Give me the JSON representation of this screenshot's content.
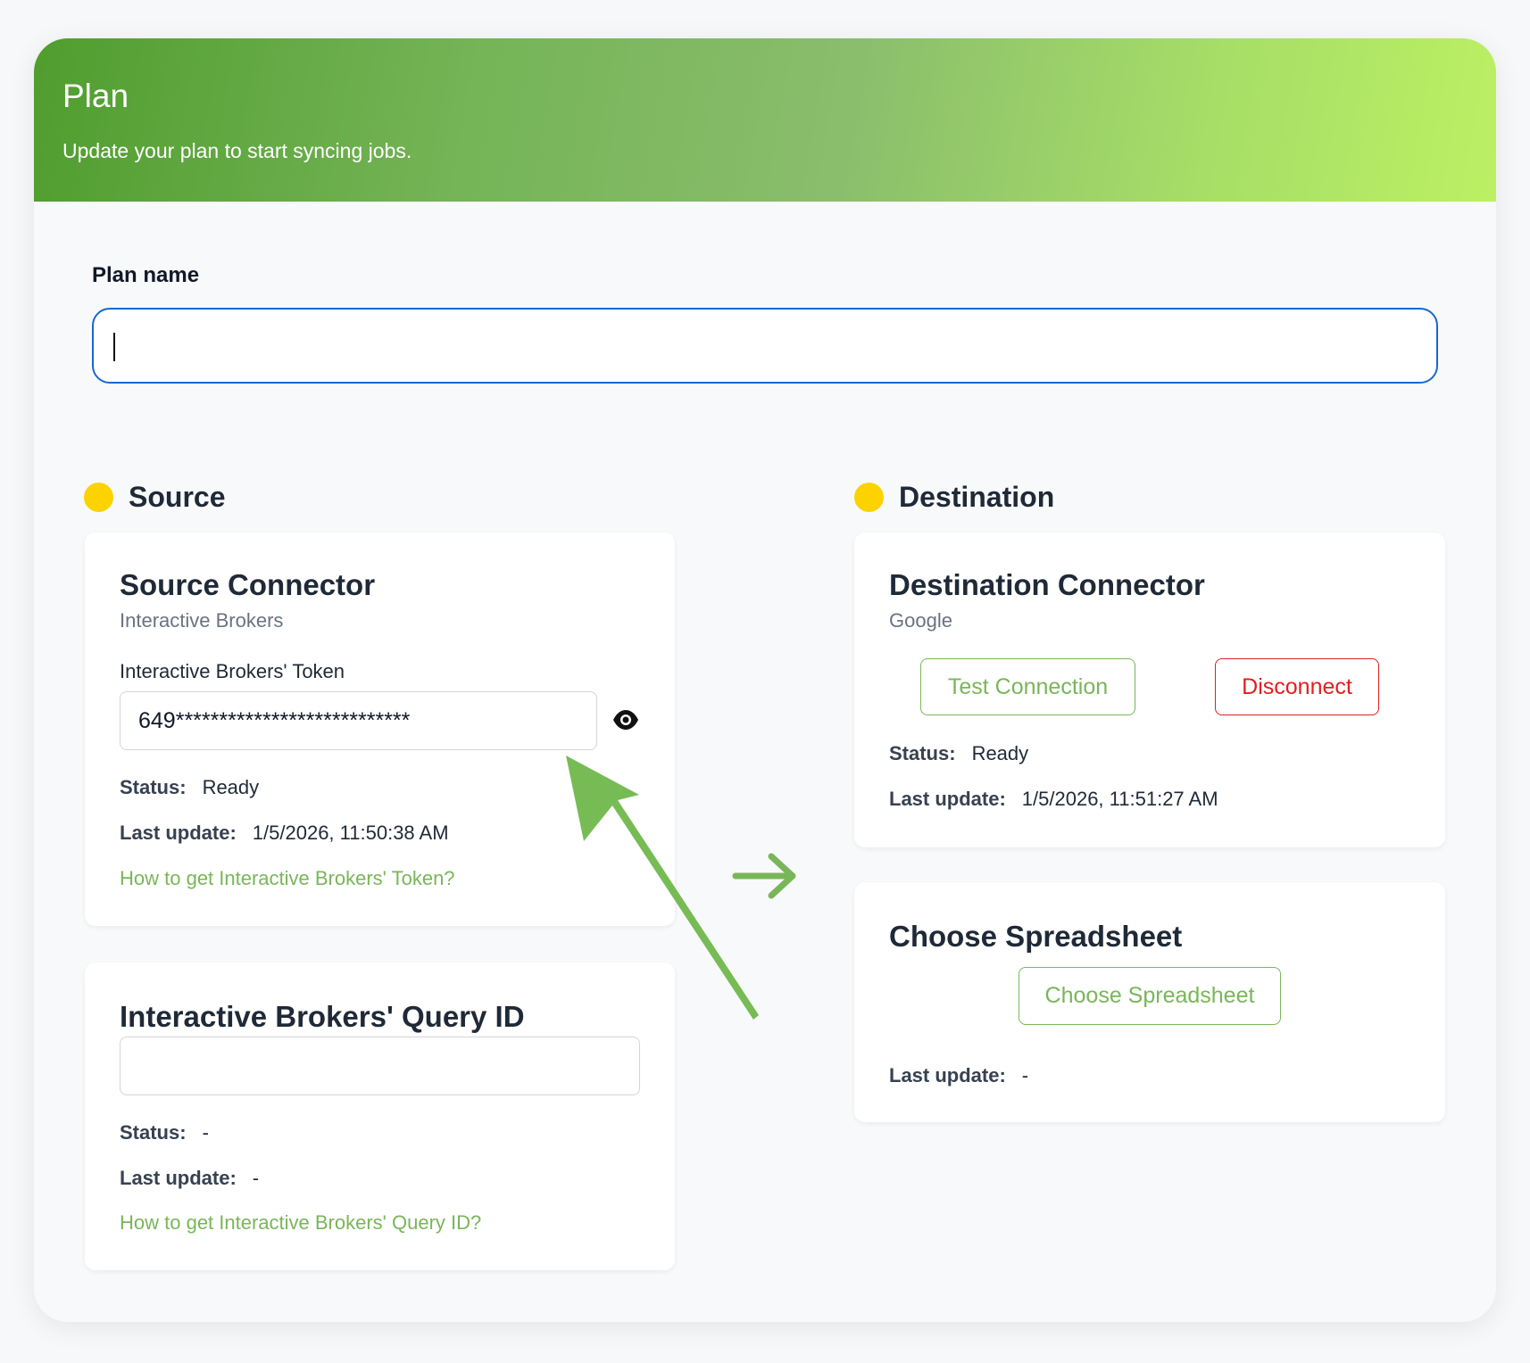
{
  "header": {
    "title": "Plan",
    "subtitle": "Update your plan to start syncing jobs."
  },
  "plan_name": {
    "label": "Plan name",
    "value": ""
  },
  "source": {
    "section_title": "Source",
    "connector": {
      "title": "Source Connector",
      "provider": "Interactive Brokers",
      "token_label": "Interactive Brokers' Token",
      "token_value": "649***************************",
      "status_label": "Status:",
      "status": "Ready",
      "last_update_label": "Last update:",
      "last_update": "1/5/2026, 11:50:38 AM",
      "help_link": "How to get Interactive Brokers' Token?"
    },
    "query": {
      "title": "Interactive Brokers' Query ID",
      "value": "",
      "status_label": "Status:",
      "status": "-",
      "last_update_label": "Last update:",
      "last_update": "-",
      "help_link": "How to get Interactive Brokers' Query ID?"
    }
  },
  "destination": {
    "section_title": "Destination",
    "connector": {
      "title": "Destination Connector",
      "provider": "Google",
      "test_button": "Test Connection",
      "disconnect_button": "Disconnect",
      "status_label": "Status:",
      "status": "Ready",
      "last_update_label": "Last update:",
      "last_update": "1/5/2026, 11:51:27 AM"
    },
    "spreadsheet": {
      "title": "Choose Spreadsheet",
      "button": "Choose Spreadsheet",
      "last_update_label": "Last update:",
      "last_update": "-"
    }
  },
  "colors": {
    "accent": "#79b659",
    "danger": "#e01e1e",
    "status_dot": "#fcd200",
    "focus": "#1a66d0"
  },
  "icons": {
    "reveal": "eye-icon",
    "flow": "arrow-right-icon",
    "annotation": "annotation-arrow-icon"
  }
}
